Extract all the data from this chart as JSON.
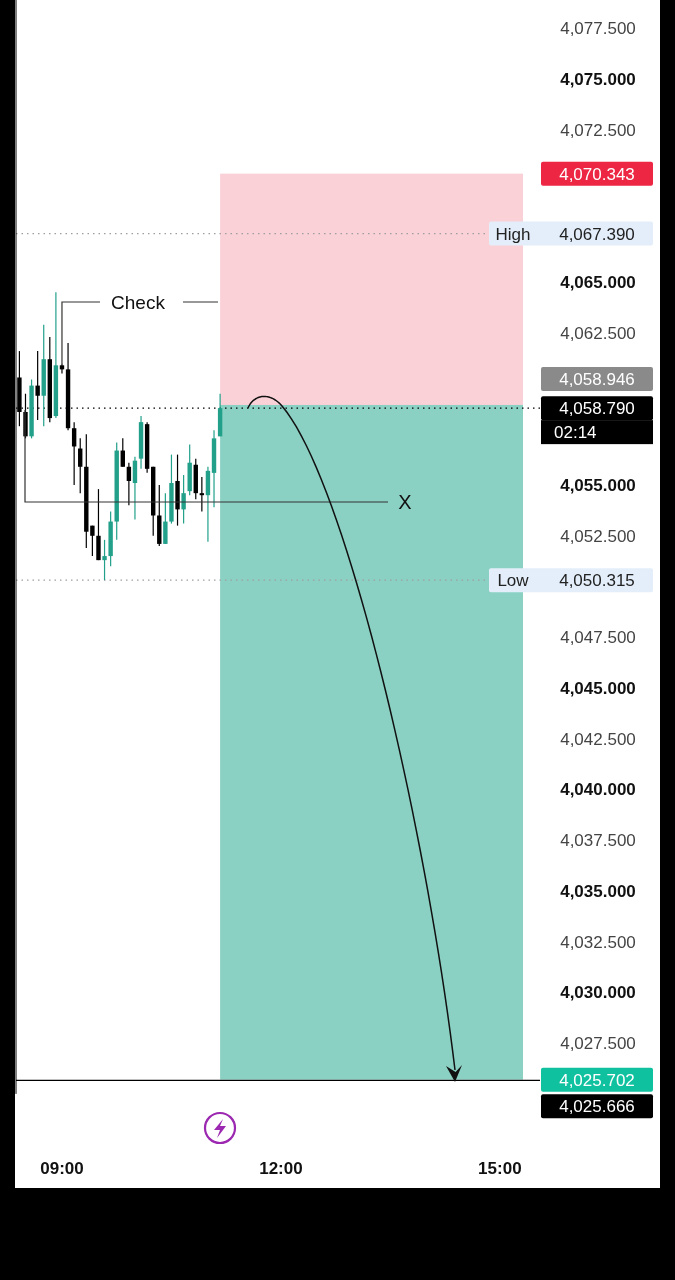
{
  "chart_data": {
    "type": "candlestick",
    "x": [
      8.4167,
      8.5,
      8.5833,
      8.6667,
      8.75,
      8.8333,
      8.9167,
      9,
      9.0833,
      9.1667,
      9.25,
      9.3333,
      9.4167,
      9.5,
      9.5833,
      9.6667,
      9.75,
      9.8333,
      9.9167,
      10,
      10.0833,
      10.1667,
      10.25,
      10.3333,
      10.4167,
      10.5,
      10.5833,
      10.6667,
      10.75,
      10.8333,
      10.9167,
      11,
      11.0833,
      11.1667
    ],
    "ohlc": [
      [
        4060.3,
        4061.6,
        4057.9,
        4058.6
      ],
      [
        4058.6,
        4059.5,
        4057.3,
        4057.4
      ],
      [
        4057.4,
        4060.2,
        4057.3,
        4059.9
      ],
      [
        4059.9,
        4061.6,
        4058.2,
        4059.4
      ],
      [
        4059.4,
        4062.9,
        4057.9,
        4061.2
      ],
      [
        4061.2,
        4062.3,
        4058.1,
        4058.3
      ],
      [
        4058.4,
        4064.5,
        4058.3,
        4060.9
      ],
      [
        4060.9,
        4061.0,
        4060.5,
        4060.7
      ],
      [
        4060.7,
        4062.0,
        4057.7,
        4057.8
      ],
      [
        4057.8,
        4058.1,
        4055.0,
        4056.9
      ],
      [
        4056.8,
        4057.3,
        4054.6,
        4055.9
      ],
      [
        4055.9,
        4057.5,
        4051.9,
        4052.7
      ],
      [
        4053.0,
        4053.0,
        4051.5,
        4052.5
      ],
      [
        4052.5,
        4054.8,
        4051.3,
        4051.3
      ],
      [
        4051.3,
        4052.3,
        4050.315,
        4051.5
      ],
      [
        4051.5,
        4053.7,
        4051.0,
        4053.2
      ],
      [
        4053.2,
        4057.1,
        4052.3,
        4056.7
      ],
      [
        4056.7,
        4057.3,
        4055.9,
        4055.9
      ],
      [
        4055.9,
        4056.1,
        4054.0,
        4055.2
      ],
      [
        4055.1,
        4056.4,
        4053.3,
        4056.2
      ],
      [
        4056.3,
        4058.4,
        4055.8,
        4058.1
      ],
      [
        4058.0,
        4058.1,
        4055.6,
        4055.8
      ],
      [
        4055.9,
        4055.9,
        4052.5,
        4053.5
      ],
      [
        4053.5,
        4055.0,
        4052.0,
        4052.1
      ],
      [
        4052.1,
        4054.6,
        4052.1,
        4053.2
      ],
      [
        4053.2,
        4056.5,
        4053.1,
        4055.1
      ],
      [
        4055.2,
        4056.5,
        4053.0,
        4053.8
      ],
      [
        4053.8,
        4055.5,
        4053.1,
        4054.6
      ],
      [
        4054.7,
        4057.0,
        4054.5,
        4056.1
      ],
      [
        4056.0,
        4056.3,
        4054.3,
        4054.6
      ],
      [
        4054.6,
        4055.4,
        4053.7,
        4054.5
      ],
      [
        4054.5,
        4055.9,
        4052.2,
        4055.7
      ],
      [
        4055.6,
        4057.7,
        4053.9,
        4057.3
      ],
      [
        4057.4,
        4059.5,
        4057.4,
        4058.79
      ]
    ],
    "colors": [
      "#000000",
      "#000000",
      "#22a08a",
      "#000000",
      "#22a08a",
      "#000000",
      "#22a08a",
      "#000000",
      "#000000",
      "#000000",
      "#000000",
      "#000000",
      "#000000",
      "#000000",
      "#22a08a",
      "#22a08a",
      "#22a08a",
      "#000000",
      "#000000",
      "#22a08a",
      "#22a08a",
      "#000000",
      "#000000",
      "#000000",
      "#22a08a",
      "#22a08a",
      "#000000",
      "#22a08a",
      "#22a08a",
      "#000000",
      "#000000",
      "#22a08a",
      "#22a08a",
      "#22a08a"
    ],
    "xlim": [
      8.37,
      15.55
    ],
    "xticks": [
      {
        "value": 9,
        "label": "09:00"
      },
      {
        "value": 12,
        "label": "12:00"
      },
      {
        "value": 15,
        "label": "15:00"
      }
    ],
    "ylim": [
      4025,
      4078.9
    ],
    "yticks": [
      {
        "value": 4077.5,
        "label": "4,077.500"
      },
      {
        "value": 4075,
        "label": "4,075.000"
      },
      {
        "value": 4072.5,
        "label": "4,072.500"
      },
      {
        "value": 4065,
        "label": "4,065.000"
      },
      {
        "value": 4062.5,
        "label": "4,062.500"
      },
      {
        "value": 4055,
        "label": "4,055.000"
      },
      {
        "value": 4052.5,
        "label": "4,052.500"
      },
      {
        "value": 4047.5,
        "label": "4,047.500"
      },
      {
        "value": 4045,
        "label": "4,045.000"
      },
      {
        "value": 4042.5,
        "label": "4,042.500"
      },
      {
        "value": 4040,
        "label": "4,040.000"
      },
      {
        "value": 4037.5,
        "label": "4,037.500"
      },
      {
        "value": 4035,
        "label": "4,035.000"
      },
      {
        "value": 4032.5,
        "label": "4,032.500"
      },
      {
        "value": 4030,
        "label": "4,030.000"
      },
      {
        "value": 4027.5,
        "label": "4,027.500"
      }
    ],
    "grid": false,
    "bands": [
      {
        "axis": "y",
        "from": 4058.946,
        "to": 4070.343,
        "color": "#fad1d7"
      },
      {
        "axis": "y",
        "from": 4025.702,
        "to": 4058.946,
        "color": "#8ad1c4"
      }
    ],
    "ref_lines": [
      {
        "axis": "y",
        "value": 4067.39,
        "label": "High",
        "line_style": "dotted",
        "color": "#9e9e9e"
      },
      {
        "axis": "y",
        "value": 4050.315,
        "label": "Low",
        "line_style": "dotted",
        "color": "#9e9e9e"
      },
      {
        "axis": "y",
        "value": 4058.79,
        "line_style": "dotted",
        "color": "#000000"
      },
      {
        "axis": "y",
        "value": 4025.666,
        "line_style": "solid",
        "color": "#000000"
      }
    ],
    "annotations": [
      {
        "text": "Check",
        "x": 9,
        "y": 4061
      },
      "X",
      "4,070.343",
      "4,067.390",
      "4,058.946",
      "4,058.790",
      "02:14",
      "4,050.315",
      "4,025.702",
      "4,025.666"
    ]
  }
}
